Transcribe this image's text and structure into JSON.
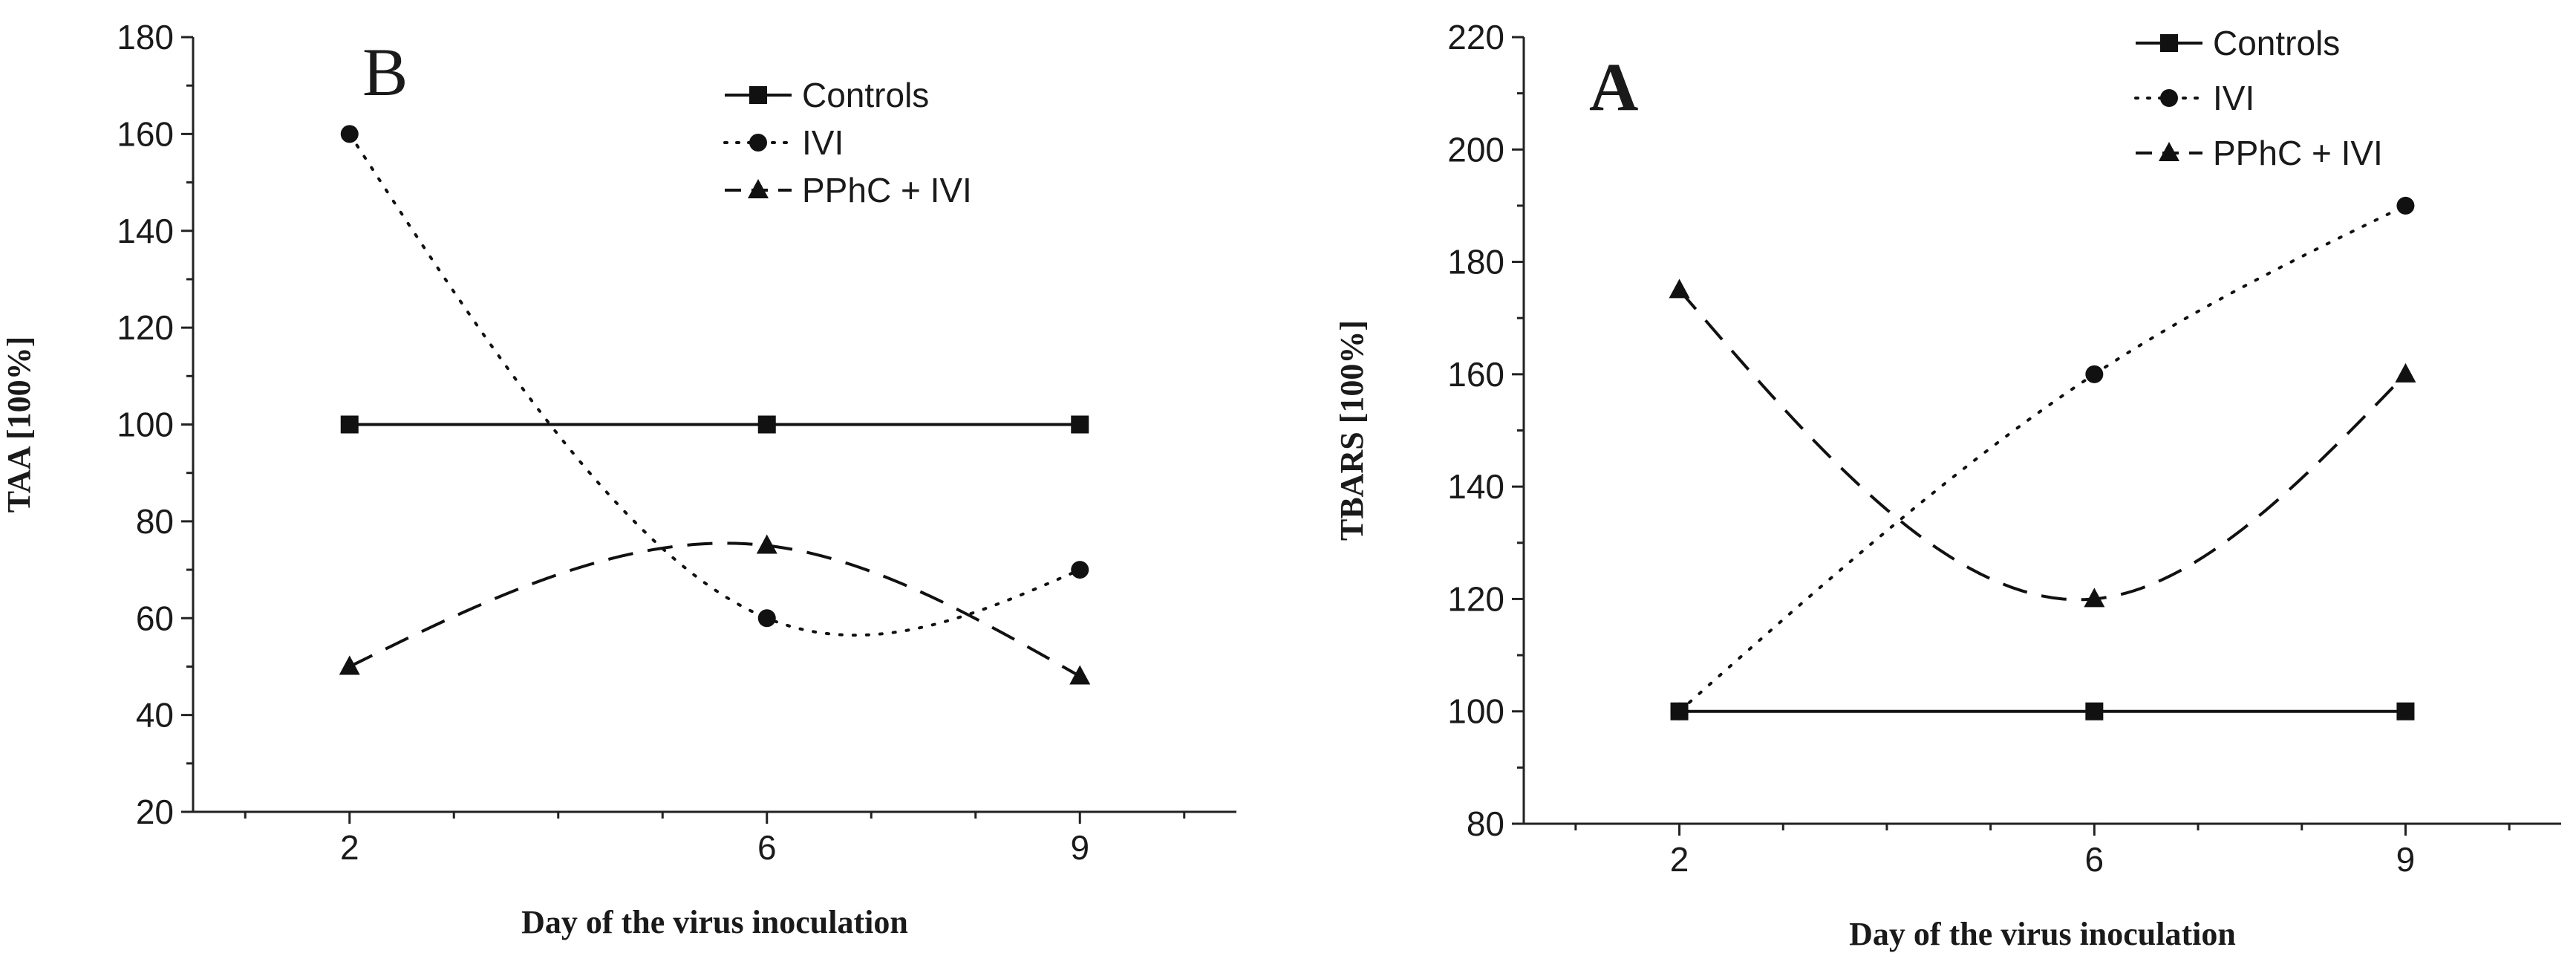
{
  "chart_data": [
    {
      "type": "line",
      "panel_label": "B",
      "title": "",
      "xlabel": "Day of the virus inoculation",
      "ylabel": "TAA [100%]",
      "ylim": [
        20,
        180
      ],
      "yticks": [
        20,
        40,
        60,
        80,
        100,
        120,
        140,
        160,
        180
      ],
      "xlim": [
        0.5,
        10.5
      ],
      "xticks": [
        2,
        6,
        9
      ],
      "legend_position": "top-right",
      "series": [
        {
          "name": "Controls",
          "style": "solid",
          "marker": "square",
          "x": [
            2,
            6,
            9
          ],
          "values": [
            100,
            100,
            100
          ]
        },
        {
          "name": "IVI",
          "style": "dotted",
          "marker": "circle",
          "x": [
            2,
            6,
            9
          ],
          "values": [
            160,
            60,
            70
          ]
        },
        {
          "name": "PPhC + IVI",
          "style": "dashed",
          "marker": "triangle",
          "x": [
            2,
            6,
            9
          ],
          "values": [
            50,
            75,
            48
          ]
        }
      ]
    },
    {
      "type": "line",
      "panel_label": "A",
      "title": "",
      "xlabel": "Day of the virus inoculation",
      "ylabel": "TBARS [100%]",
      "ylim": [
        80,
        220
      ],
      "yticks": [
        80,
        100,
        120,
        140,
        160,
        180,
        200,
        220
      ],
      "xlim": [
        0.5,
        10.5
      ],
      "xticks": [
        2,
        6,
        9
      ],
      "legend_position": "top-right",
      "series": [
        {
          "name": "Controls",
          "style": "solid",
          "marker": "square",
          "x": [
            2,
            6,
            9
          ],
          "values": [
            100,
            100,
            100
          ]
        },
        {
          "name": "IVI",
          "style": "dotted",
          "marker": "circle",
          "x": [
            2,
            6,
            9
          ],
          "values": [
            100,
            160,
            190
          ]
        },
        {
          "name": "PPhC + IVI",
          "style": "dashed",
          "marker": "triangle",
          "x": [
            2,
            6,
            9
          ],
          "values": [
            175,
            120,
            160
          ]
        }
      ]
    }
  ]
}
